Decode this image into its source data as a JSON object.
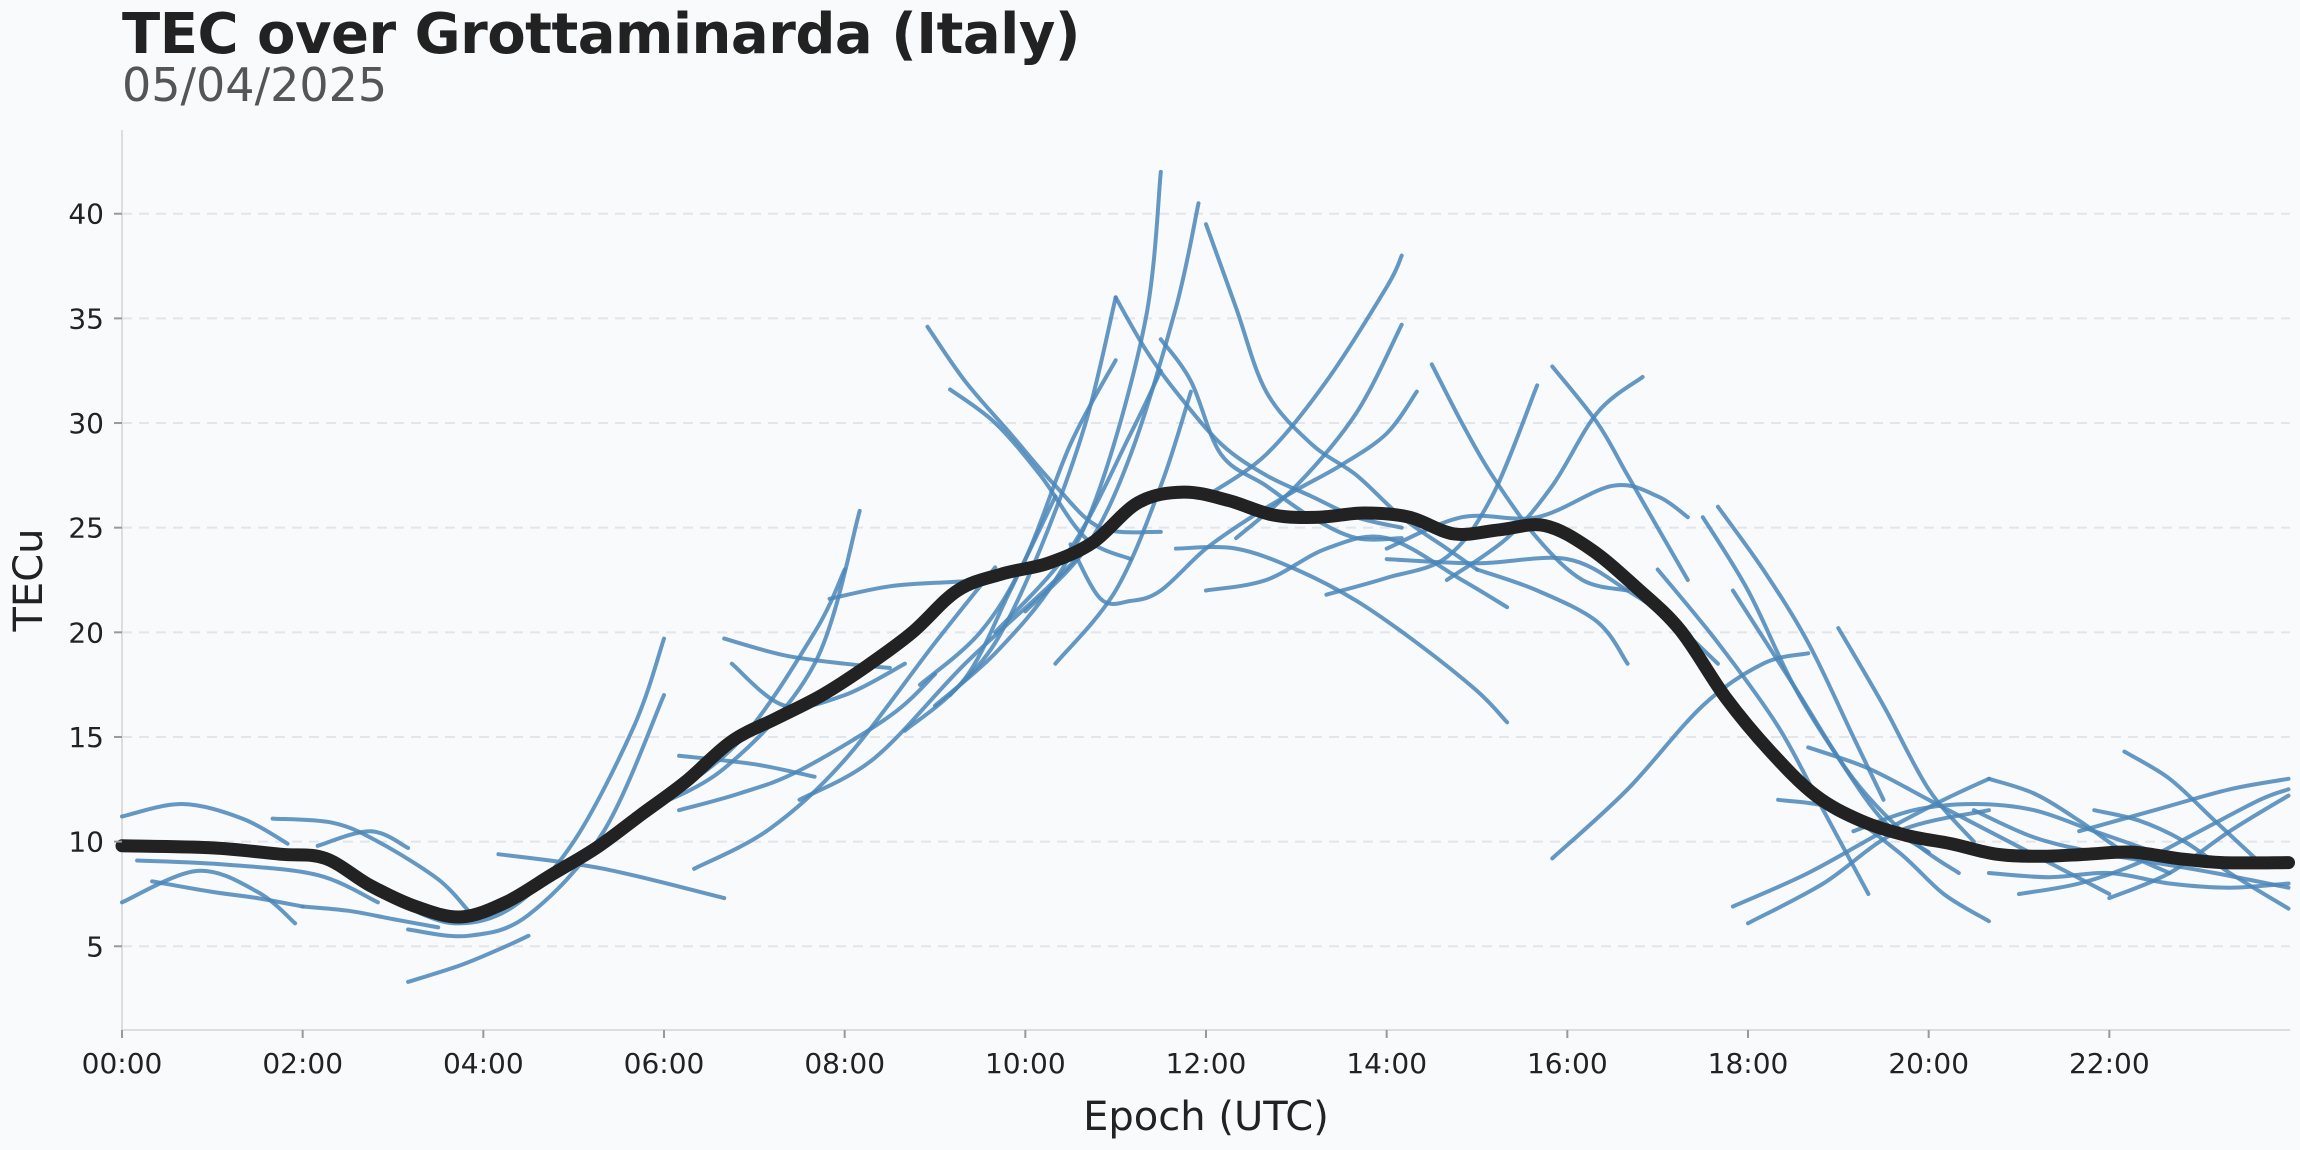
{
  "chart_data": {
    "type": "line",
    "title": "TEC over Grottaminarda (Italy)",
    "subtitle": "05/04/2025",
    "xlabel": "Epoch (UTC)",
    "ylabel": "TECu",
    "xlim": [
      "00:00",
      "24:00"
    ],
    "ylim": [
      1,
      44
    ],
    "x_ticks": [
      "00:00",
      "02:00",
      "04:00",
      "06:00",
      "08:00",
      "10:00",
      "12:00",
      "14:00",
      "16:00",
      "18:00",
      "20:00",
      "22:00"
    ],
    "y_ticks": [
      5,
      10,
      15,
      20,
      25,
      30,
      35,
      40
    ],
    "grid": "horizontal dashed",
    "colors": {
      "satellite_arcs": "#4a86b8",
      "mean": "#222222",
      "background": "#f8fafc"
    },
    "series": [
      {
        "type": "mean",
        "x": [
          "00:00",
          "01:00",
          "01:45",
          "02:15",
          "02:45",
          "03:15",
          "03:45",
          "04:15",
          "04:45",
          "05:15",
          "05:45",
          "06:15",
          "06:45",
          "07:15",
          "07:45",
          "08:15",
          "08:45",
          "09:15",
          "09:45",
          "10:15",
          "10:45",
          "11:15",
          "11:45",
          "12:15",
          "12:45",
          "13:15",
          "13:45",
          "14:15",
          "14:45",
          "15:15",
          "15:45",
          "16:15",
          "16:45",
          "17:15",
          "17:45",
          "18:15",
          "18:45",
          "19:15",
          "19:45",
          "20:15",
          "20:45",
          "21:15",
          "21:45",
          "22:15",
          "22:45",
          "23:15",
          "23:59"
        ],
        "y": [
          9.8,
          9.7,
          9.4,
          9.2,
          7.9,
          6.9,
          6.4,
          7.1,
          8.4,
          9.7,
          11.3,
          12.9,
          14.8,
          15.9,
          17.0,
          18.4,
          20.0,
          22.0,
          22.8,
          23.3,
          24.3,
          26.2,
          26.7,
          26.3,
          25.6,
          25.5,
          25.7,
          25.5,
          24.7,
          24.9,
          25.1,
          24.0,
          22.2,
          20.1,
          16.9,
          14.3,
          12.2,
          11.0,
          10.3,
          9.9,
          9.4,
          9.3,
          9.4,
          9.5,
          9.2,
          9.0,
          9.0
        ]
      },
      {
        "type": "arc",
        "x": [
          "00:00",
          "00:40",
          "01:20",
          "01:50"
        ],
        "y": [
          11.2,
          11.8,
          11.1,
          9.9
        ]
      },
      {
        "type": "arc",
        "x": [
          "00:00",
          "00:50",
          "01:30",
          "01:55"
        ],
        "y": [
          7.1,
          8.6,
          7.6,
          6.1
        ]
      },
      {
        "type": "arc",
        "x": [
          "00:10",
          "01:10",
          "02:10",
          "02:50"
        ],
        "y": [
          9.1,
          8.9,
          8.4,
          7.1
        ]
      },
      {
        "type": "arc",
        "x": [
          "01:40",
          "02:20",
          "02:50",
          "03:30",
          "03:50"
        ],
        "y": [
          11.1,
          10.9,
          10.0,
          8.2,
          6.7
        ]
      },
      {
        "type": "arc",
        "x": [
          "02:00",
          "02:30",
          "03:00",
          "03:30"
        ],
        "y": [
          6.9,
          6.7,
          6.3,
          5.9
        ]
      },
      {
        "type": "arc",
        "x": [
          "02:10",
          "02:45",
          "03:10"
        ],
        "y": [
          9.8,
          10.5,
          9.7
        ]
      },
      {
        "type": "arc",
        "x": [
          "00:20",
          "01:00",
          "01:30",
          "02:00"
        ],
        "y": [
          8.1,
          7.6,
          7.3,
          6.9
        ]
      },
      {
        "type": "arc",
        "x": [
          "03:10",
          "03:45",
          "04:15",
          "04:30"
        ],
        "y": [
          3.3,
          4.1,
          5.0,
          5.5
        ]
      },
      {
        "type": "arc",
        "x": [
          "03:10",
          "03:50",
          "04:30",
          "05:20",
          "06:00"
        ],
        "y": [
          5.8,
          5.5,
          6.5,
          10.5,
          17.0
        ]
      },
      {
        "type": "arc",
        "x": [
          "03:00",
          "03:40",
          "04:20",
          "05:00",
          "05:40",
          "06:00"
        ],
        "y": [
          7.2,
          6.1,
          6.9,
          10.0,
          15.5,
          19.7
        ]
      },
      {
        "type": "arc",
        "x": [
          "04:10",
          "05:20",
          "06:40"
        ],
        "y": [
          9.4,
          8.7,
          7.3
        ]
      },
      {
        "type": "arc",
        "x": [
          "05:00",
          "05:50",
          "06:50",
          "07:40",
          "08:00"
        ],
        "y": [
          9.1,
          11.5,
          14.8,
          20.0,
          23.0
        ]
      },
      {
        "type": "arc",
        "x": [
          "05:40",
          "06:40",
          "07:40",
          "08:10"
        ],
        "y": [
          11.3,
          13.5,
          18.5,
          25.8
        ]
      },
      {
        "type": "arc",
        "x": [
          "06:10",
          "07:00",
          "07:40"
        ],
        "y": [
          14.1,
          13.7,
          13.1
        ]
      },
      {
        "type": "arc",
        "x": [
          "06:10",
          "06:50",
          "07:30",
          "08:30",
          "09:00"
        ],
        "y": [
          11.5,
          12.3,
          13.4,
          16.0,
          18.0
        ]
      },
      {
        "type": "arc",
        "x": [
          "06:40",
          "07:20",
          "08:00",
          "08:30"
        ],
        "y": [
          19.7,
          18.9,
          18.5,
          18.3
        ]
      },
      {
        "type": "arc",
        "x": [
          "06:20",
          "07:10",
          "08:00",
          "09:00",
          "09:40"
        ],
        "y": [
          8.7,
          10.6,
          13.9,
          19.5,
          23.1
        ]
      },
      {
        "type": "arc",
        "x": [
          "06:45",
          "07:20",
          "08:00",
          "08:40"
        ],
        "y": [
          18.5,
          16.5,
          17.0,
          18.5
        ]
      },
      {
        "type": "arc",
        "x": [
          "07:30",
          "08:20",
          "09:20",
          "10:20",
          "11:00"
        ],
        "y": [
          12.0,
          14.0,
          18.5,
          22.5,
          25.5
        ]
      },
      {
        "type": "arc",
        "x": [
          "07:50",
          "08:30",
          "09:10",
          "09:40"
        ],
        "y": [
          21.6,
          22.2,
          22.4,
          22.5
        ]
      },
      {
        "type": "arc",
        "x": [
          "08:40",
          "09:20",
          "09:50",
          "10:20"
        ],
        "y": [
          15.3,
          17.8,
          22.0,
          26.5
        ]
      },
      {
        "type": "arc",
        "x": [
          "08:50",
          "09:30",
          "10:00",
          "10:30",
          "11:00"
        ],
        "y": [
          17.5,
          20.0,
          23.5,
          29.0,
          33.0
        ]
      },
      {
        "type": "arc",
        "x": [
          "09:10",
          "09:40",
          "10:10",
          "10:40",
          "11:00"
        ],
        "y": [
          17.0,
          19.5,
          24.0,
          30.0,
          36.0
        ]
      },
      {
        "type": "arc",
        "x": [
          "09:00",
          "09:40",
          "10:20",
          "10:50",
          "11:20",
          "11:30"
        ],
        "y": [
          16.5,
          19.0,
          22.5,
          27.0,
          35.0,
          42.0
        ]
      },
      {
        "type": "arc",
        "x": [
          "09:40",
          "10:30",
          "11:10",
          "11:30"
        ],
        "y": [
          20.0,
          24.0,
          29.5,
          32.5
        ]
      },
      {
        "type": "arc",
        "x": [
          "10:00",
          "10:40",
          "11:10",
          "11:40",
          "11:55"
        ],
        "y": [
          21.0,
          24.0,
          28.5,
          35.5,
          40.5
        ]
      },
      {
        "type": "arc",
        "x": [
          "10:20",
          "11:00",
          "11:30",
          "11:50"
        ],
        "y": [
          18.5,
          22.0,
          27.0,
          31.5
        ]
      },
      {
        "type": "arc",
        "x": [
          "08:55",
          "09:20",
          "09:50",
          "10:20",
          "10:50",
          "11:30"
        ],
        "y": [
          34.6,
          32.0,
          29.5,
          27.0,
          25.0,
          24.8
        ]
      },
      {
        "type": "arc",
        "x": [
          "09:10",
          "09:40",
          "10:10",
          "10:40",
          "11:10"
        ],
        "y": [
          31.6,
          30.0,
          27.5,
          24.5,
          23.5
        ]
      },
      {
        "type": "arc",
        "x": [
          "10:30",
          "10:50",
          "11:10",
          "11:30",
          "12:00",
          "12:30",
          "13:00",
          "13:30",
          "14:00",
          "14:20"
        ],
        "y": [
          24.2,
          21.6,
          21.5,
          22.0,
          24.0,
          25.5,
          26.8,
          28.0,
          29.5,
          31.5
        ]
      },
      {
        "type": "arc",
        "x": [
          "11:00",
          "11:20",
          "11:40",
          "12:10",
          "12:40",
          "13:10",
          "13:40",
          "14:10"
        ],
        "y": [
          36.0,
          33.5,
          31.5,
          29.0,
          27.5,
          26.5,
          25.5,
          25.0
        ]
      },
      {
        "type": "arc",
        "x": [
          "11:30",
          "11:50",
          "12:10",
          "12:40",
          "13:10",
          "13:40",
          "14:10"
        ],
        "y": [
          34.0,
          32.0,
          28.5,
          27.0,
          25.5,
          24.5,
          24.5
        ]
      },
      {
        "type": "arc",
        "x": [
          "12:00",
          "12:20",
          "12:40",
          "13:10",
          "13:40",
          "14:10",
          "14:40",
          "15:00"
        ],
        "y": [
          39.5,
          35.5,
          31.5,
          29.0,
          27.5,
          25.5,
          24.0,
          23.0
        ]
      },
      {
        "type": "arc",
        "x": [
          "12:00",
          "12:40",
          "13:20",
          "14:00",
          "14:50",
          "15:20"
        ],
        "y": [
          22.0,
          22.5,
          24.0,
          24.5,
          22.5,
          21.2
        ]
      },
      {
        "type": "arc",
        "x": [
          "11:40",
          "12:20",
          "13:00",
          "13:40",
          "14:20",
          "15:00",
          "15:20"
        ],
        "y": [
          24.0,
          24.0,
          23.0,
          21.5,
          19.5,
          17.2,
          15.7
        ]
      },
      {
        "type": "arc",
        "x": [
          "12:00",
          "12:40",
          "13:20",
          "14:00",
          "14:10"
        ],
        "y": [
          26.5,
          28.5,
          32.0,
          36.5,
          38.0
        ]
      },
      {
        "type": "arc",
        "x": [
          "12:20",
          "13:00",
          "13:40",
          "14:10"
        ],
        "y": [
          24.5,
          27.0,
          30.5,
          34.7
        ]
      },
      {
        "type": "arc",
        "x": [
          "13:20",
          "14:00",
          "14:40",
          "15:10",
          "15:40"
        ],
        "y": [
          21.8,
          22.6,
          23.6,
          26.5,
          31.8
        ]
      },
      {
        "type": "arc",
        "x": [
          "14:30",
          "14:50",
          "15:10",
          "15:40",
          "16:10",
          "16:40"
        ],
        "y": [
          32.8,
          30.0,
          27.5,
          24.5,
          22.5,
          22.0
        ]
      },
      {
        "type": "arc",
        "x": [
          "14:00",
          "14:50",
          "15:40",
          "16:30",
          "17:00",
          "17:20"
        ],
        "y": [
          24.0,
          25.5,
          25.5,
          27.0,
          26.5,
          25.5
        ]
      },
      {
        "type": "arc",
        "x": [
          "14:40",
          "15:20",
          "15:50",
          "16:20",
          "16:50"
        ],
        "y": [
          22.5,
          24.5,
          27.0,
          30.5,
          32.2
        ]
      },
      {
        "type": "arc",
        "x": [
          "15:50",
          "16:20",
          "16:40",
          "17:00",
          "17:20"
        ],
        "y": [
          32.7,
          30.0,
          27.5,
          25.0,
          22.5
        ]
      },
      {
        "type": "arc",
        "x": [
          "14:00",
          "15:00",
          "16:00",
          "16:40",
          "17:10",
          "17:40"
        ],
        "y": [
          23.5,
          23.3,
          23.5,
          22.0,
          20.5,
          18.5
        ]
      },
      {
        "type": "arc",
        "x": [
          "15:00",
          "15:40",
          "16:20",
          "16:40"
        ],
        "y": [
          23.0,
          22.0,
          20.5,
          18.5
        ]
      },
      {
        "type": "arc",
        "x": [
          "15:50",
          "16:40",
          "17:30",
          "18:10",
          "18:40"
        ],
        "y": [
          9.2,
          12.5,
          16.5,
          18.5,
          19.0
        ]
      },
      {
        "type": "arc",
        "x": [
          "17:00",
          "17:40",
          "18:20",
          "18:50",
          "19:20"
        ],
        "y": [
          23.0,
          19.5,
          15.5,
          11.5,
          7.5
        ]
      },
      {
        "type": "arc",
        "x": [
          "17:40",
          "18:10",
          "18:40",
          "19:10",
          "19:30"
        ],
        "y": [
          26.0,
          23.0,
          19.5,
          15.0,
          12.0
        ]
      },
      {
        "type": "arc",
        "x": [
          "17:30",
          "18:00",
          "18:30",
          "19:00",
          "19:30",
          "20:00"
        ],
        "y": [
          25.5,
          22.0,
          17.5,
          14.0,
          11.0,
          9.5
        ]
      },
      {
        "type": "arc",
        "x": [
          "17:50",
          "18:30",
          "19:10",
          "19:50",
          "20:20"
        ],
        "y": [
          22.0,
          17.5,
          13.0,
          10.0,
          8.5
        ]
      },
      {
        "type": "arc",
        "x": [
          "19:00",
          "19:30",
          "20:00",
          "20:30"
        ],
        "y": [
          20.2,
          16.5,
          12.5,
          10.0
        ]
      },
      {
        "type": "arc",
        "x": [
          "17:50",
          "18:40",
          "19:30",
          "20:10",
          "20:40"
        ],
        "y": [
          6.9,
          8.5,
          10.5,
          12.0,
          13.0
        ]
      },
      {
        "type": "arc",
        "x": [
          "18:00",
          "18:50",
          "19:40",
          "20:40"
        ],
        "y": [
          6.1,
          8.0,
          10.5,
          11.5
        ]
      },
      {
        "type": "arc",
        "x": [
          "18:20",
          "19:00",
          "19:40",
          "20:10",
          "20:40"
        ],
        "y": [
          12.0,
          11.5,
          9.5,
          7.5,
          6.2
        ]
      },
      {
        "type": "arc",
        "x": [
          "18:40",
          "19:20",
          "20:00",
          "20:40",
          "21:20",
          "22:00"
        ],
        "y": [
          14.5,
          13.5,
          12.0,
          10.5,
          9.0,
          7.5
        ]
      },
      {
        "type": "arc",
        "x": [
          "20:40",
          "21:10",
          "21:40",
          "22:10",
          "22:40"
        ],
        "y": [
          13.0,
          12.3,
          11.0,
          9.5,
          8.5
        ]
      },
      {
        "type": "arc",
        "x": [
          "20:30",
          "21:10",
          "21:50",
          "22:30",
          "23:10",
          "23:59"
        ],
        "y": [
          11.5,
          10.2,
          9.5,
          9.0,
          8.5,
          7.8
        ]
      },
      {
        "type": "arc",
        "x": [
          "21:00",
          "21:40",
          "22:20",
          "23:00",
          "23:40",
          "23:59"
        ],
        "y": [
          7.5,
          8.0,
          9.0,
          10.5,
          12.0,
          12.5
        ]
      },
      {
        "type": "arc",
        "x": [
          "21:50",
          "22:20",
          "22:50",
          "23:20",
          "23:59"
        ],
        "y": [
          11.5,
          11.0,
          10.0,
          8.5,
          6.8
        ]
      },
      {
        "type": "arc",
        "x": [
          "22:10",
          "22:40",
          "23:10",
          "23:40"
        ],
        "y": [
          14.3,
          13.0,
          11.0,
          9.0
        ]
      },
      {
        "type": "arc",
        "x": [
          "22:00",
          "22:40",
          "23:20",
          "23:59"
        ],
        "y": [
          7.3,
          8.5,
          10.5,
          12.2
        ]
      },
      {
        "type": "arc",
        "x": [
          "21:40",
          "22:30",
          "23:20",
          "23:59"
        ],
        "y": [
          10.5,
          11.5,
          12.5,
          13.0
        ]
      },
      {
        "type": "arc",
        "x": [
          "20:40",
          "21:20",
          "22:00",
          "22:40",
          "23:20",
          "23:59"
        ],
        "y": [
          8.5,
          8.3,
          8.5,
          8.0,
          7.8,
          8.0
        ]
      },
      {
        "type": "arc",
        "x": [
          "19:10",
          "19:50",
          "20:30",
          "21:10",
          "21:50",
          "22:30"
        ],
        "y": [
          10.5,
          11.5,
          11.8,
          11.5,
          10.5,
          9.5
        ]
      }
    ]
  }
}
